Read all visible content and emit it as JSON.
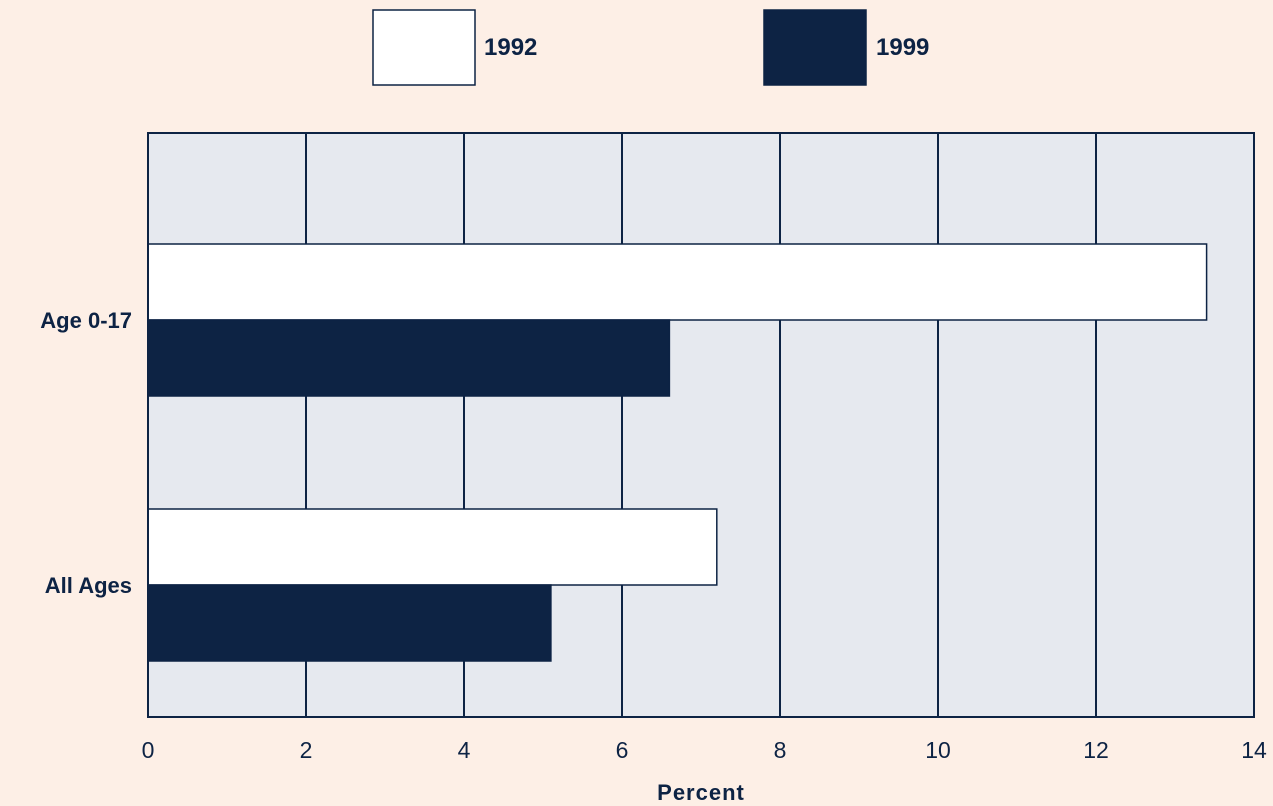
{
  "chart_data": {
    "type": "bar",
    "orientation": "horizontal",
    "categories": [
      "Age 0-17",
      "All Ages"
    ],
    "series": [
      {
        "name": "1992",
        "values": [
          13.4,
          7.2
        ],
        "color": "#ffffff"
      },
      {
        "name": "1999",
        "values": [
          6.6,
          5.1
        ],
        "color": "#0d2344"
      }
    ],
    "xlabel": "Percent",
    "xlim": [
      0,
      14
    ],
    "xticks": [
      0,
      2,
      4,
      6,
      8,
      10,
      12,
      14
    ],
    "grid": true,
    "legend_position": "top"
  },
  "colors": {
    "background": "#fdefe6",
    "plot_background": "#e6e9ef",
    "navy": "#0d2344"
  }
}
